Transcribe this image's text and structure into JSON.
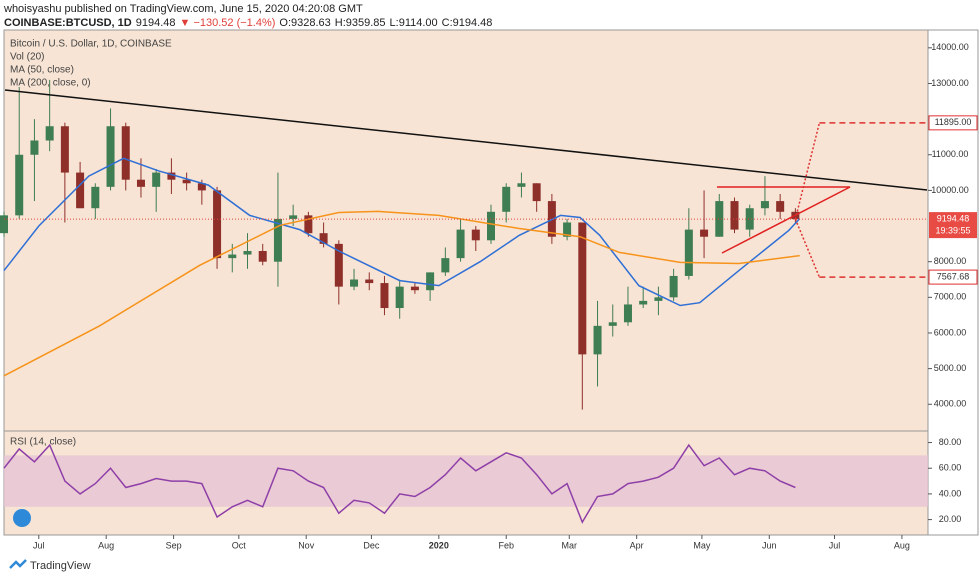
{
  "header": {
    "published": "whoisyashu published on TradingView.com, June 15, 2020 04:20:08 GMT",
    "symbol": "COINBASE:BTCUSD, 1D",
    "last": "9194.48",
    "change": "▼ −130.52 (−1.4%)",
    "open": "O:9328.63",
    "high": "H:9359.85",
    "low": "L:9114.00",
    "close": "C:9194.48"
  },
  "volume_label": "Vol (20)",
  "footer": "TradingView",
  "chart_data": [
    {
      "type": "candlestick",
      "title": "Bitcoin / U.S. Dollar, 1D, COINBASE",
      "up_color": "#3f7d52",
      "down_color": "#8e2f2a",
      "x": [
        -16,
        -9,
        -2,
        5,
        12,
        19,
        26,
        33,
        40,
        47,
        54,
        61,
        68,
        75,
        82,
        89,
        96,
        103,
        110,
        117,
        124,
        131,
        138,
        145,
        152,
        159,
        166,
        173,
        180,
        187,
        194,
        201,
        208,
        215,
        222,
        229,
        236,
        243,
        250,
        257,
        264,
        271,
        278,
        285,
        292,
        299,
        306,
        313,
        320,
        327,
        334,
        341,
        348
      ],
      "open": [
        8800,
        9300,
        11000,
        11400,
        11800,
        10500,
        9500,
        10100,
        11800,
        10300,
        10100,
        10500,
        10300,
        10200,
        10000,
        8100,
        8200,
        8300,
        8000,
        9200,
        9300,
        8800,
        8500,
        7300,
        7500,
        7400,
        6700,
        7300,
        7200,
        7700,
        8100,
        8900,
        8600,
        9400,
        10100,
        10200,
        9700,
        8700,
        9100,
        5400,
        6200,
        6300,
        6800,
        6900,
        7000,
        7600,
        8900,
        8700,
        9700,
        8900,
        9500,
        9700,
        9400
      ],
      "high": [
        9400,
        12900,
        12000,
        13100,
        11900,
        10800,
        10200,
        12300,
        11900,
        10900,
        10600,
        10900,
        10500,
        10300,
        10100,
        8500,
        8800,
        8500,
        10500,
        9600,
        9400,
        9100,
        8600,
        7800,
        7700,
        7600,
        7500,
        7400,
        7700,
        8400,
        9200,
        9000,
        9600,
        10200,
        10500,
        10200,
        9900,
        9200,
        9100,
        6900,
        6800,
        7300,
        7300,
        7300,
        7800,
        9500,
        10000,
        9900,
        9800,
        9600,
        10400,
        9900,
        9500
      ],
      "low": [
        8700,
        9200,
        9700,
        11100,
        9100,
        9500,
        9200,
        10000,
        10000,
        9800,
        9400,
        9900,
        10000,
        9600,
        7800,
        7700,
        7800,
        7900,
        7300,
        9000,
        8700,
        8400,
        6800,
        7200,
        7200,
        6500,
        6400,
        7100,
        6900,
        7600,
        8000,
        8300,
        8500,
        9100,
        9800,
        9400,
        8500,
        8600,
        3850,
        4500,
        5900,
        6200,
        6700,
        6500,
        6900,
        7500,
        8100,
        8700,
        8800,
        8700,
        9300,
        9200,
        9100
      ],
      "close": [
        9300,
        11000,
        11400,
        11800,
        10500,
        9500,
        10100,
        11800,
        10300,
        10100,
        10500,
        10300,
        10200,
        10000,
        8100,
        8200,
        8300,
        8000,
        9200,
        9300,
        8800,
        8500,
        7300,
        7500,
        7400,
        6700,
        7300,
        7200,
        7700,
        8100,
        8900,
        8600,
        9400,
        10100,
        10200,
        9700,
        8700,
        9100,
        5400,
        6200,
        6300,
        6800,
        6900,
        7000,
        7600,
        8900,
        8700,
        9700,
        8900,
        9500,
        9700,
        9400,
        9194.48
      ],
      "series": [
        {
          "name": "MA (50, close)",
          "color": "#2f6fd6",
          "x": [
            -16,
            0,
            23,
            39,
            55,
            78,
            97,
            120,
            138,
            166,
            184,
            203,
            221,
            240,
            249,
            258,
            276,
            295,
            304,
            322,
            345,
            350
          ],
          "values": [
            7750,
            9000,
            10400,
            10900,
            10550,
            10150,
            9300,
            8900,
            8300,
            7470,
            7330,
            8000,
            8740,
            9300,
            9240,
            8740,
            7330,
            6770,
            6850,
            7750,
            8880,
            9210
          ]
        },
        {
          "name": "MA (200, close, 0)",
          "color": "#f7931a",
          "x": [
            -16,
            28,
            74,
            111,
            138,
            156,
            184,
            221,
            249,
            267,
            295,
            322,
            350
          ],
          "values": [
            4800,
            6200,
            7900,
            9020,
            9380,
            9410,
            9300,
            8930,
            8700,
            8260,
            7980,
            7950,
            8170
          ]
        }
      ],
      "xlim": [
        -16,
        409
      ],
      "ylim": [
        3250,
        14500
      ],
      "yticks": [
        {
          "value": 14000,
          "label": "14000.00"
        },
        {
          "value": 13000,
          "label": "13000.00"
        },
        {
          "value": 11000,
          "label": "11000.00"
        },
        {
          "value": 10000,
          "label": "10000.00"
        },
        {
          "value": 8000,
          "label": "8000.00"
        },
        {
          "value": 7000,
          "label": "7000.00"
        },
        {
          "value": 6000,
          "label": "6000.00"
        },
        {
          "value": 5000,
          "label": "5000.00"
        },
        {
          "value": 4000,
          "label": "4000.00"
        }
      ],
      "xticks": [
        {
          "value": 0,
          "label": "Jul"
        },
        {
          "value": 31,
          "label": "Aug"
        },
        {
          "value": 62,
          "label": "Sep"
        },
        {
          "value": 92,
          "label": "Oct"
        },
        {
          "value": 123,
          "label": "Nov"
        },
        {
          "value": 153,
          "label": "Dec"
        },
        {
          "value": 184,
          "label": "2020"
        },
        {
          "value": 215,
          "label": "Feb"
        },
        {
          "value": 244,
          "label": "Mar"
        },
        {
          "value": 275,
          "label": "Apr"
        },
        {
          "value": 305,
          "label": "May"
        },
        {
          "value": 336,
          "label": "Jun"
        },
        {
          "value": 366,
          "label": "Jul"
        },
        {
          "value": 397,
          "label": "Aug"
        }
      ],
      "last_price": 9194.48,
      "countdown": "19:39:55",
      "targets": [
        {
          "value": 11895,
          "label": "11895.00"
        },
        {
          "value": 7567.68,
          "label": "7567.68"
        }
      ]
    },
    {
      "type": "line",
      "ylim": [
        8,
        89
      ],
      "band": [
        30,
        70
      ],
      "band_color": "#e6c3d3",
      "yticks": [
        {
          "value": 80,
          "label": "80.00"
        },
        {
          "value": 60,
          "label": "60.00"
        },
        {
          "value": 40,
          "label": "40.00"
        },
        {
          "value": 20,
          "label": "20.00"
        }
      ],
      "series": [
        {
          "name": "RSI (14, close)",
          "color": "#8e3fa8",
          "x": [
            -16,
            -9,
            -2,
            5,
            12,
            19,
            26,
            33,
            40,
            47,
            54,
            61,
            68,
            75,
            82,
            89,
            96,
            103,
            110,
            117,
            124,
            131,
            138,
            145,
            152,
            159,
            166,
            173,
            180,
            187,
            194,
            201,
            208,
            215,
            222,
            229,
            236,
            243,
            250,
            257,
            264,
            271,
            278,
            285,
            292,
            299,
            306,
            313,
            320,
            327,
            334,
            341,
            348
          ],
          "values": [
            60,
            75,
            65,
            78,
            50,
            40,
            48,
            60,
            45,
            48,
            52,
            50,
            50,
            48,
            22,
            30,
            35,
            30,
            60,
            58,
            50,
            45,
            25,
            35,
            33,
            25,
            40,
            38,
            45,
            55,
            68,
            58,
            65,
            72,
            68,
            55,
            40,
            48,
            18,
            38,
            40,
            48,
            50,
            53,
            60,
            78,
            62,
            68,
            55,
            60,
            58,
            50,
            45
          ]
        }
      ]
    }
  ]
}
